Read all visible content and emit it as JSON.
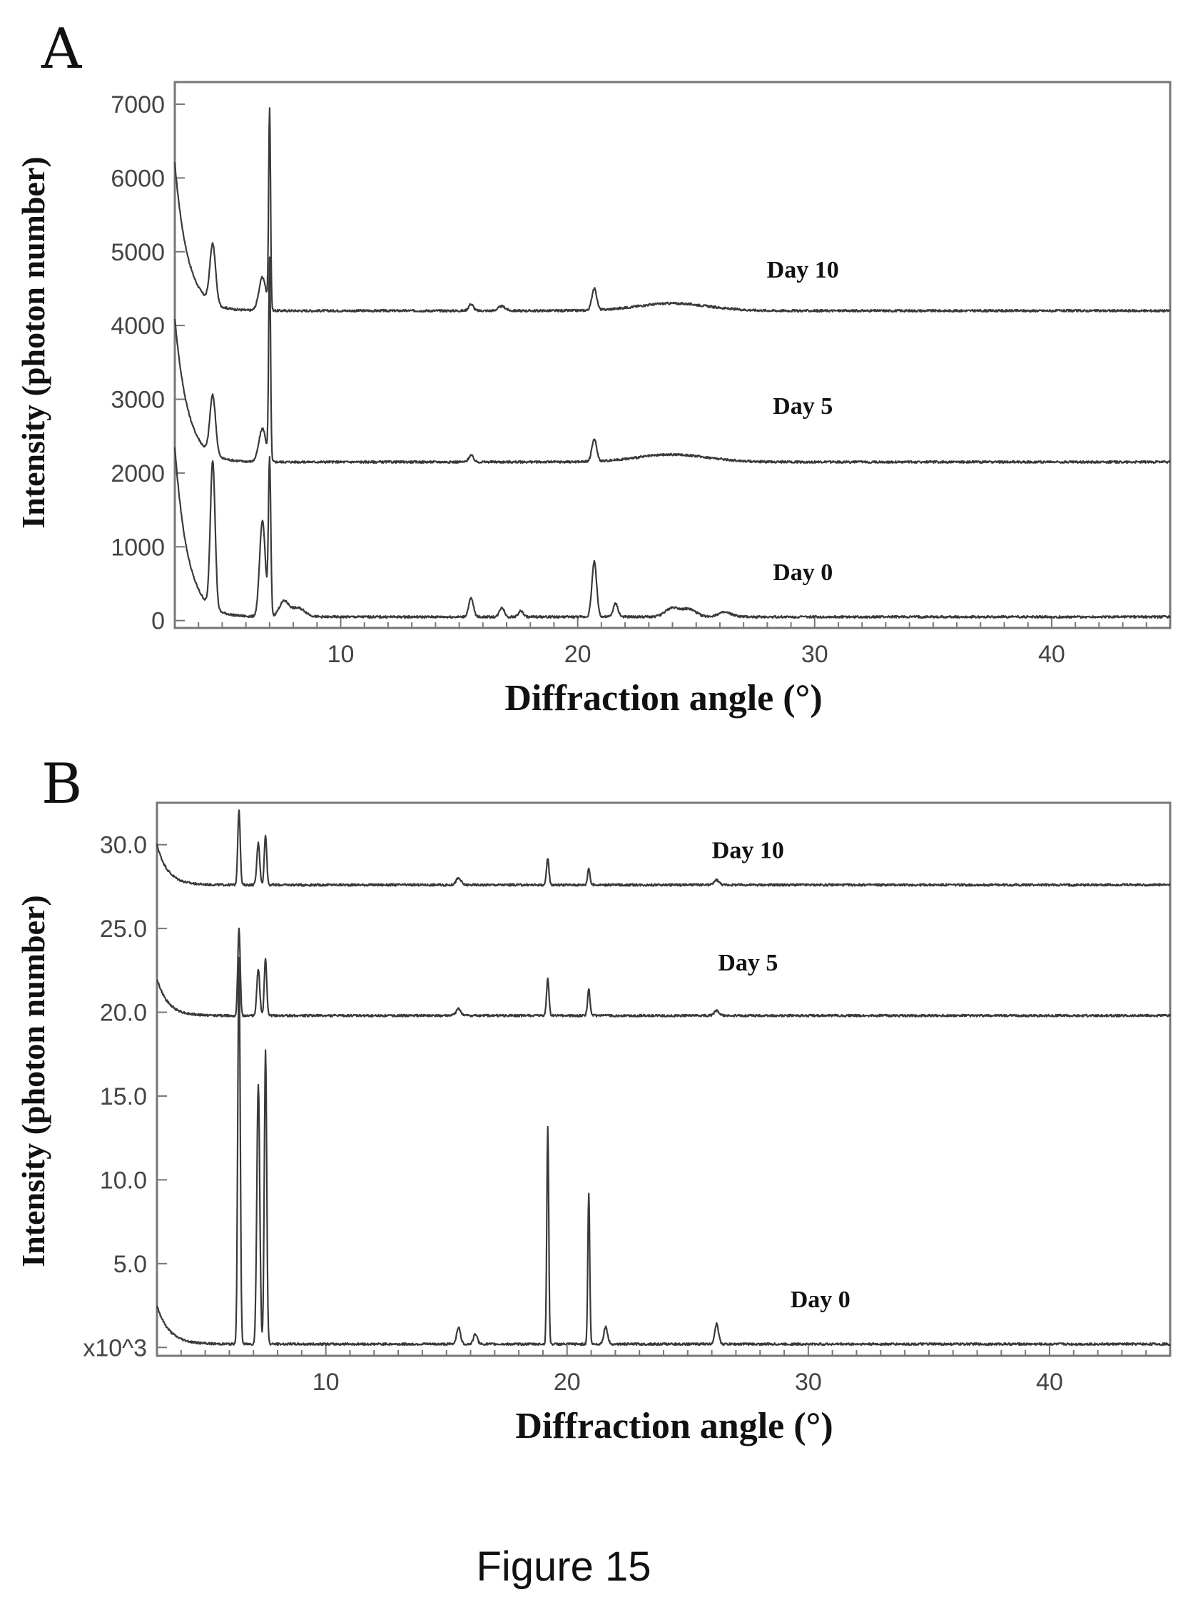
{
  "figure": {
    "caption": "Figure 15"
  },
  "chart_data": [
    {
      "panel": "A",
      "type": "line",
      "xlabel": "Diffraction angle (°)",
      "ylabel": "Intensity (photon number)",
      "xlim": [
        3,
        45
      ],
      "ylim": [
        -100,
        7300
      ],
      "xticks": [
        10,
        20,
        30,
        40
      ],
      "yticks": [
        0,
        1000,
        2000,
        3000,
        4000,
        5000,
        6000,
        7000
      ],
      "yticklabels": [
        "0",
        "1000",
        "2000",
        "3000",
        "4000",
        "5000",
        "6000",
        "7000"
      ],
      "grid": false,
      "series": [
        {
          "name": "Day 10",
          "label_at": [
            29.5,
            4650
          ],
          "baseline": 4200,
          "start": 6200,
          "decay": 0.55,
          "peaks": [
            [
              4.6,
              800,
              0.12
            ],
            [
              6.7,
              450,
              0.15
            ],
            [
              7.0,
              2700,
              0.04
            ],
            [
              15.5,
              90,
              0.1
            ],
            [
              16.8,
              60,
              0.15
            ],
            [
              20.7,
              300,
              0.1
            ],
            [
              24.0,
              100,
              1.5
            ]
          ]
        },
        {
          "name": "Day 5",
          "label_at": [
            29.5,
            2800
          ],
          "baseline": 2150,
          "start": 4100,
          "decay": 0.55,
          "peaks": [
            [
              4.6,
              800,
              0.12
            ],
            [
              6.7,
              450,
              0.15
            ],
            [
              7.0,
              2700,
              0.04
            ],
            [
              15.5,
              90,
              0.1
            ],
            [
              20.7,
              300,
              0.1
            ],
            [
              24.0,
              100,
              1.5
            ]
          ]
        },
        {
          "name": "Day 0",
          "label_at": [
            29.5,
            550
          ],
          "baseline": 50,
          "start": 2350,
          "decay": 0.55,
          "peaks": [
            [
              4.6,
              2000,
              0.1
            ],
            [
              6.7,
              1300,
              0.12
            ],
            [
              7.0,
              2100,
              0.05
            ],
            [
              7.6,
              200,
              0.2
            ],
            [
              8.2,
              120,
              0.3
            ],
            [
              15.5,
              250,
              0.1
            ],
            [
              16.8,
              130,
              0.1
            ],
            [
              17.6,
              80,
              0.1
            ],
            [
              20.7,
              750,
              0.1
            ],
            [
              21.6,
              180,
              0.1
            ],
            [
              24.0,
              120,
              0.3
            ],
            [
              24.7,
              100,
              0.3
            ],
            [
              26.2,
              60,
              0.3
            ]
          ]
        }
      ]
    },
    {
      "panel": "B",
      "type": "line",
      "xlabel": "Diffraction angle (°)",
      "ylabel": "Intensity (photon number)",
      "xlim": [
        3,
        45
      ],
      "ylim": [
        -0.5,
        32.5
      ],
      "xticks": [
        10,
        20,
        30,
        40
      ],
      "yticks": [
        0,
        5,
        10,
        15,
        20,
        25,
        30
      ],
      "yticklabels": [
        "x10^3",
        "5.0",
        "10.0",
        "15.0",
        "20.0",
        "25.0",
        "30.0"
      ],
      "grid": false,
      "series": [
        {
          "name": "Day 10",
          "label_at": [
            27.5,
            29.2
          ],
          "baseline": 27.6,
          "start": 30.0,
          "decay": 0.45,
          "peaks": [
            [
              6.4,
              4.5,
              0.05
            ],
            [
              7.2,
              2.5,
              0.06
            ],
            [
              7.5,
              3.0,
              0.05
            ],
            [
              15.5,
              0.4,
              0.1
            ],
            [
              19.2,
              1.6,
              0.05
            ],
            [
              20.9,
              1.0,
              0.05
            ],
            [
              26.2,
              0.3,
              0.1
            ]
          ]
        },
        {
          "name": "Day 5",
          "label_at": [
            27.5,
            22.5
          ],
          "baseline": 19.8,
          "start": 22.0,
          "decay": 0.45,
          "peaks": [
            [
              6.4,
              5.2,
              0.05
            ],
            [
              7.2,
              2.8,
              0.06
            ],
            [
              7.5,
              3.4,
              0.05
            ],
            [
              15.5,
              0.4,
              0.1
            ],
            [
              19.2,
              2.2,
              0.05
            ],
            [
              20.9,
              1.6,
              0.05
            ],
            [
              26.2,
              0.3,
              0.1
            ]
          ]
        },
        {
          "name": "Day 0",
          "label_at": [
            30.5,
            2.4
          ],
          "baseline": 0.2,
          "start": 2.5,
          "decay": 0.5,
          "peaks": [
            [
              6.4,
              23.0,
              0.05
            ],
            [
              7.2,
              15.5,
              0.06
            ],
            [
              7.5,
              17.5,
              0.05
            ],
            [
              15.5,
              1.0,
              0.08
            ],
            [
              16.2,
              0.6,
              0.08
            ],
            [
              19.2,
              13.0,
              0.04
            ],
            [
              20.9,
              9.0,
              0.04
            ],
            [
              21.6,
              1.0,
              0.08
            ],
            [
              26.2,
              1.2,
              0.08
            ]
          ]
        }
      ]
    }
  ]
}
